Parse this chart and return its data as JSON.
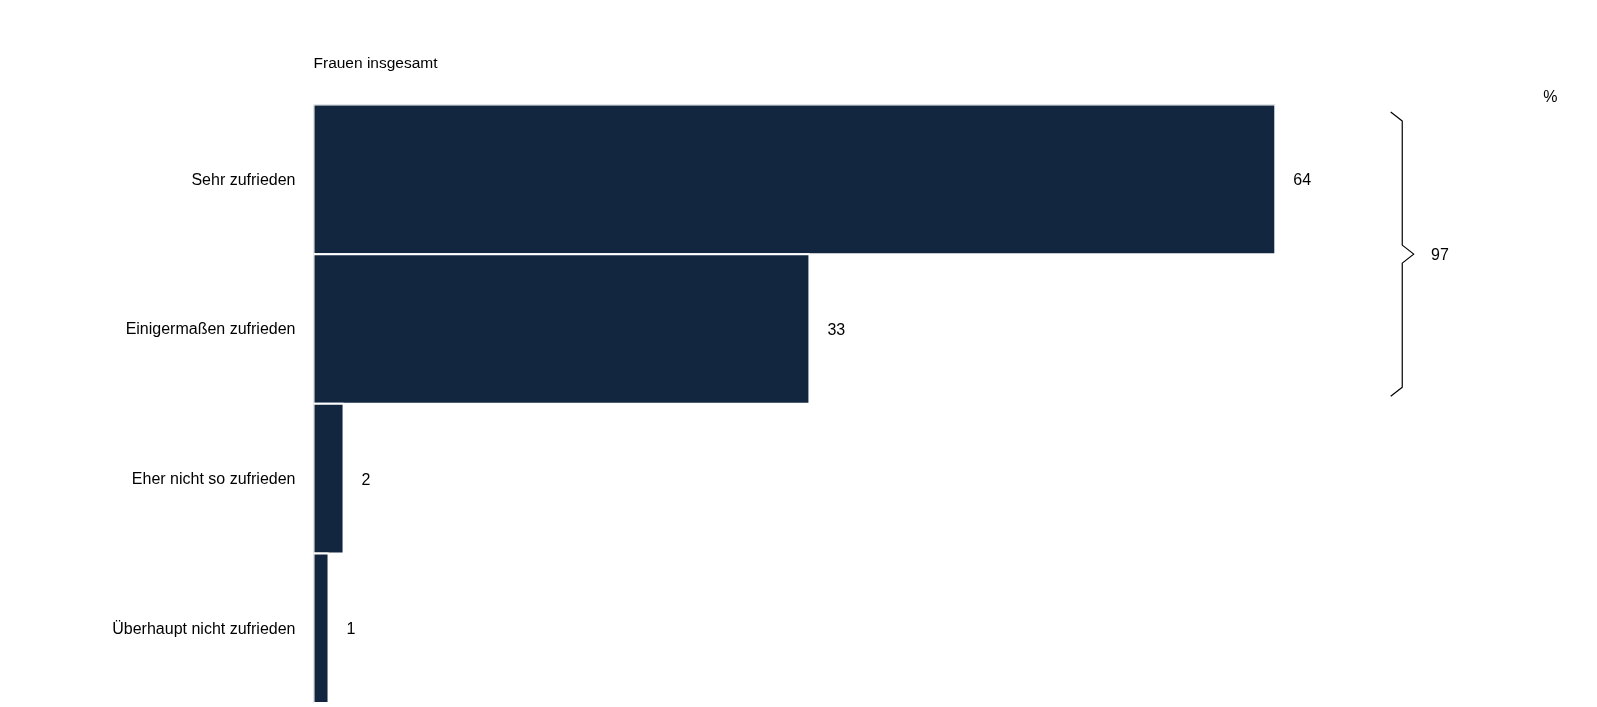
{
  "chart_data": {
    "type": "bar",
    "orientation": "horizontal",
    "title": "Frauen insgesamt",
    "categories": [
      "Sehr zufrieden",
      "Einigermaßen zufrieden",
      "Eher nicht so zufrieden",
      "Überhaupt nicht zufrieden"
    ],
    "values": [
      64,
      33,
      2,
      1
    ],
    "color": "#13263f",
    "data_labels": true,
    "grid": false,
    "annotations": [
      "97",
      "%"
    ]
  }
}
